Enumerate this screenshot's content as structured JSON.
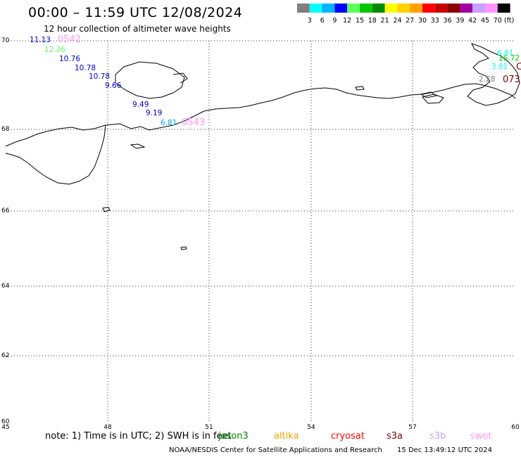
{
  "header": {
    "title": "00:00 – 11:59 UTC 12/08/2024",
    "subtitle": "12 hour collection of altimeter wave heights"
  },
  "legend": {
    "unit": "(ft)",
    "bins": [
      {
        "label": "3",
        "color": "#808080"
      },
      {
        "label": "6",
        "color": "#00ffff"
      },
      {
        "label": "9",
        "color": "#00b4ff"
      },
      {
        "label": "12",
        "color": "#0000ff"
      },
      {
        "label": "15",
        "color": "#5dff5d"
      },
      {
        "label": "18",
        "color": "#00c800"
      },
      {
        "label": "21",
        "color": "#008c00"
      },
      {
        "label": "24",
        "color": "#ffff00"
      },
      {
        "label": "27",
        "color": "#ffd200"
      },
      {
        "label": "30",
        "color": "#ffa000"
      },
      {
        "label": "33",
        "color": "#ff0000"
      },
      {
        "label": "36",
        "color": "#c80000"
      },
      {
        "label": "39",
        "color": "#8c0000"
      },
      {
        "label": "42",
        "color": "#a000a0"
      },
      {
        "label": "45",
        "color": "#c8a0ff"
      },
      {
        "label": "70",
        "color": "#ff96ff"
      },
      {
        "label": "",
        "color": "#000000"
      }
    ]
  },
  "map": {
    "lat_ticks": [
      "70",
      "68",
      "66",
      "64",
      "62",
      "60"
    ],
    "lon_ticks": [
      "45",
      "48",
      "51",
      "54",
      "57",
      "60"
    ],
    "observations": [
      {
        "text": "11.13",
        "color": "#0000cc"
      },
      {
        "text": "0542",
        "color": "#ff96ff"
      },
      {
        "text": "12.26",
        "color": "#5dff5d"
      },
      {
        "text": "10.76",
        "color": "#0000cc"
      },
      {
        "text": "10.78",
        "color": "#0000cc"
      },
      {
        "text": "10.78",
        "color": "#0000cc"
      },
      {
        "text": "9.66",
        "color": "#0000cc"
      },
      {
        "text": "9.49",
        "color": "#0000cc"
      },
      {
        "text": "9.19",
        "color": "#0000cc"
      },
      {
        "text": "6.81",
        "color": "#00a0ff"
      },
      {
        "text": "0543",
        "color": "#ff96ff"
      },
      {
        "text": "6.81",
        "color": "#00ffff"
      },
      {
        "text": "16.72",
        "color": "#00c800"
      },
      {
        "text": "C",
        "color": "#8c0000"
      },
      {
        "text": "3.81",
        "color": "#00ffff"
      },
      {
        "text": "2.28",
        "color": "#808080"
      },
      {
        "text": "073",
        "color": "#8c0000"
      }
    ]
  },
  "footer": {
    "note": "note: 1) Time is in UTC; 2) SWH is in feet",
    "satellites": [
      {
        "name": "jason3",
        "color": "#008c00"
      },
      {
        "name": "altika",
        "color": "#ffa000"
      },
      {
        "name": "cryosat",
        "color": "#ff0000"
      },
      {
        "name": "s3a",
        "color": "#8c0000"
      },
      {
        "name": "s3b",
        "color": "#c8a0ff"
      },
      {
        "name": "swot",
        "color": "#ff96ff"
      }
    ],
    "credit": "NOAA/NESDIS Center for Satellite Applications and Research",
    "generated": "15 Dec 13:49:12 UTC 2024"
  }
}
